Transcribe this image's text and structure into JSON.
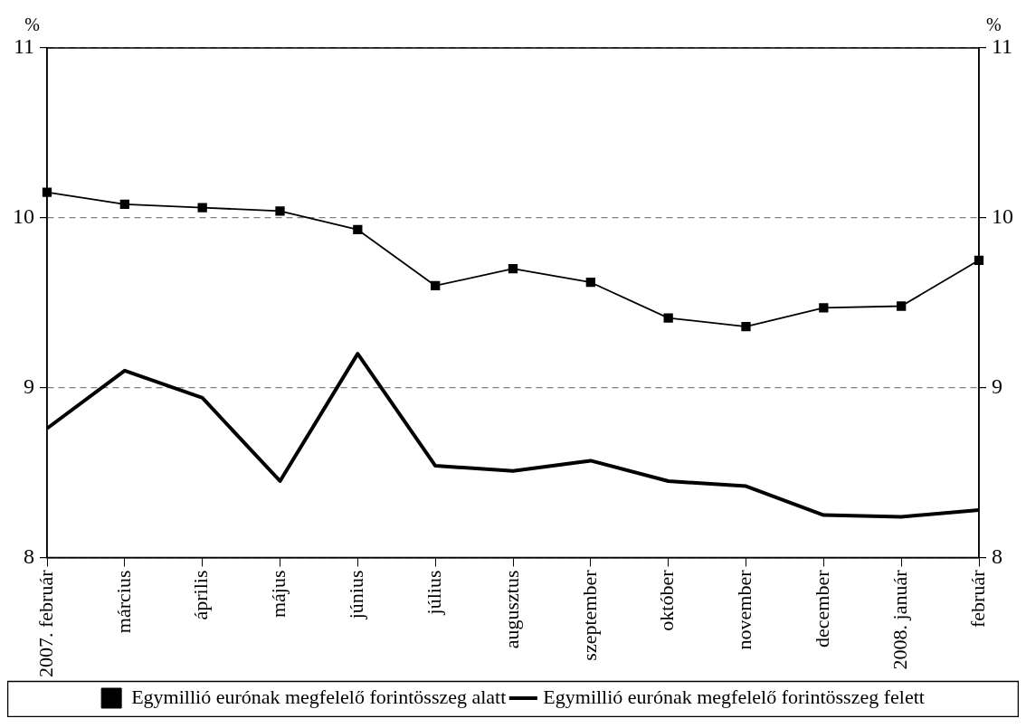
{
  "chart_data": {
    "type": "line",
    "ylabel": "%",
    "y2label": "%",
    "categories": [
      "2007. február",
      "március",
      "április",
      "május",
      "június",
      "július",
      "augusztus",
      "szeptember",
      "október",
      "november",
      "december",
      "2008. január",
      "február"
    ],
    "series": [
      {
        "name": "Egymillió eurónak megfelelő forintösszeg alatt",
        "color": "#000000",
        "marker": "square",
        "values": [
          10.15,
          10.08,
          10.06,
          10.04,
          9.93,
          9.6,
          9.7,
          9.62,
          9.41,
          9.36,
          9.47,
          9.48,
          9.75
        ]
      },
      {
        "name": "Egymillió eurónak megfelelő forintösszeg felett",
        "color": "#000000",
        "marker": "none",
        "values": [
          8.76,
          9.1,
          8.94,
          8.45,
          9.2,
          8.54,
          8.51,
          8.57,
          8.45,
          8.42,
          8.25,
          8.24,
          8.28
        ]
      }
    ],
    "ylim": [
      8,
      11
    ],
    "yticks": [
      8,
      9,
      10,
      11
    ],
    "y2lim": [
      8,
      11
    ],
    "y2ticks": [
      8,
      9,
      10,
      11
    ],
    "grid": "y",
    "legend": "bottom"
  }
}
